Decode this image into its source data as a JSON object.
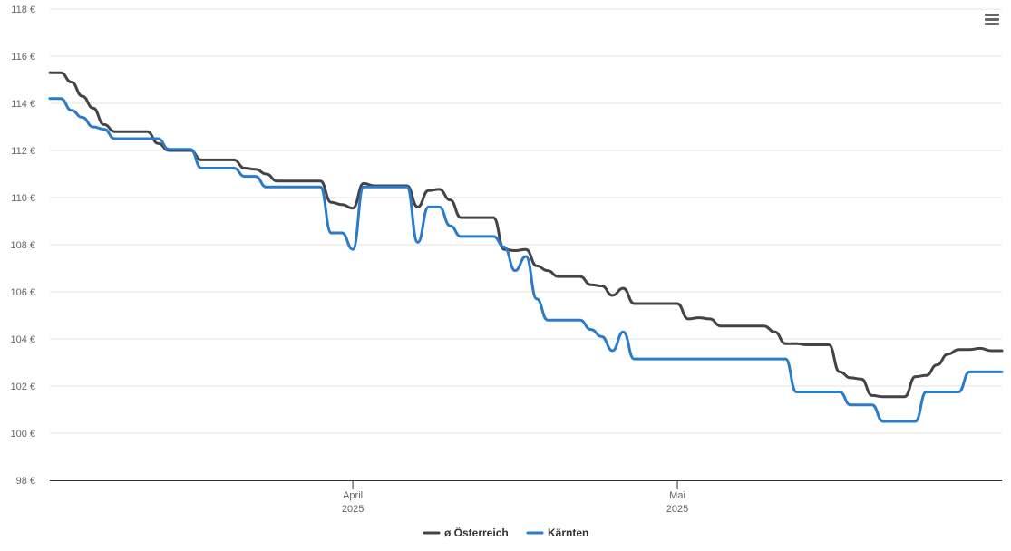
{
  "chart_data": {
    "type": "line",
    "title": "",
    "xlabel": "",
    "ylabel": "",
    "x_range": [
      "2025-03-04",
      "2025-05-31"
    ],
    "ylim": [
      98,
      118
    ],
    "y_ticks": [
      98,
      100,
      102,
      104,
      106,
      108,
      110,
      112,
      114,
      116,
      118
    ],
    "y_tick_labels": [
      "98 €",
      "100 €",
      "102 €",
      "104 €",
      "106 €",
      "108 €",
      "110 €",
      "112 €",
      "114 €",
      "116 €",
      "118 €"
    ],
    "x_ticks": [
      {
        "date": "2025-04-01",
        "month": "April",
        "year": "2025"
      },
      {
        "date": "2025-05-01",
        "month": "Mai",
        "year": "2025"
      }
    ],
    "grid": "horizontal",
    "legend_position": "bottom-center",
    "series": [
      {
        "name": "ø Österreich",
        "color": "#434348",
        "points": [
          [
            "2025-03-04",
            115.3
          ],
          [
            "2025-03-05",
            115.3
          ],
          [
            "2025-03-06",
            114.9
          ],
          [
            "2025-03-07",
            114.3
          ],
          [
            "2025-03-08",
            113.8
          ],
          [
            "2025-03-09",
            113.1
          ],
          [
            "2025-03-10",
            112.8
          ],
          [
            "2025-03-13",
            112.8
          ],
          [
            "2025-03-14",
            112.3
          ],
          [
            "2025-03-15",
            112.0
          ],
          [
            "2025-03-17",
            112.0
          ],
          [
            "2025-03-18",
            111.6
          ],
          [
            "2025-03-21",
            111.6
          ],
          [
            "2025-03-22",
            111.25
          ],
          [
            "2025-03-23",
            111.2
          ],
          [
            "2025-03-24",
            111.0
          ],
          [
            "2025-03-25",
            110.7
          ],
          [
            "2025-03-29",
            110.7
          ],
          [
            "2025-03-30",
            109.8
          ],
          [
            "2025-03-31",
            109.7
          ],
          [
            "2025-04-01",
            109.55
          ],
          [
            "2025-04-02",
            110.6
          ],
          [
            "2025-04-03",
            110.5
          ],
          [
            "2025-04-05",
            110.5
          ],
          [
            "2025-04-06",
            110.5
          ],
          [
            "2025-04-07",
            109.6
          ],
          [
            "2025-04-08",
            110.3
          ],
          [
            "2025-04-09",
            110.35
          ],
          [
            "2025-04-10",
            109.9
          ],
          [
            "2025-04-11",
            109.15
          ],
          [
            "2025-04-14",
            109.15
          ],
          [
            "2025-04-15",
            107.8
          ],
          [
            "2025-04-16",
            107.75
          ],
          [
            "2025-04-17",
            107.8
          ],
          [
            "2025-04-18",
            107.1
          ],
          [
            "2025-04-19",
            106.9
          ],
          [
            "2025-04-20",
            106.65
          ],
          [
            "2025-04-22",
            106.65
          ],
          [
            "2025-04-23",
            106.3
          ],
          [
            "2025-04-24",
            106.25
          ],
          [
            "2025-04-25",
            105.85
          ],
          [
            "2025-04-26",
            106.15
          ],
          [
            "2025-04-27",
            105.5
          ],
          [
            "2025-05-01",
            105.5
          ],
          [
            "2025-05-02",
            104.85
          ],
          [
            "2025-05-03",
            104.9
          ],
          [
            "2025-05-04",
            104.85
          ],
          [
            "2025-05-05",
            104.55
          ],
          [
            "2025-05-09",
            104.55
          ],
          [
            "2025-05-10",
            104.3
          ],
          [
            "2025-05-11",
            103.8
          ],
          [
            "2025-05-12",
            103.8
          ],
          [
            "2025-05-13",
            103.75
          ],
          [
            "2025-05-15",
            103.75
          ],
          [
            "2025-05-16",
            102.6
          ],
          [
            "2025-05-17",
            102.35
          ],
          [
            "2025-05-18",
            102.3
          ],
          [
            "2025-05-19",
            101.6
          ],
          [
            "2025-05-20",
            101.55
          ],
          [
            "2025-05-22",
            101.55
          ],
          [
            "2025-05-23",
            102.4
          ],
          [
            "2025-05-24",
            102.45
          ],
          [
            "2025-05-25",
            102.9
          ],
          [
            "2025-05-26",
            103.35
          ],
          [
            "2025-05-27",
            103.55
          ],
          [
            "2025-05-28",
            103.55
          ],
          [
            "2025-05-29",
            103.6
          ],
          [
            "2025-05-30",
            103.5
          ],
          [
            "2025-05-31",
            103.5
          ]
        ]
      },
      {
        "name": "Kärnten",
        "color": "#2b7bc8",
        "points": [
          [
            "2025-03-04",
            114.2
          ],
          [
            "2025-03-05",
            114.2
          ],
          [
            "2025-03-06",
            113.7
          ],
          [
            "2025-03-07",
            113.4
          ],
          [
            "2025-03-08",
            113.0
          ],
          [
            "2025-03-09",
            112.9
          ],
          [
            "2025-03-10",
            112.5
          ],
          [
            "2025-03-14",
            112.5
          ],
          [
            "2025-03-15",
            112.05
          ],
          [
            "2025-03-17",
            112.05
          ],
          [
            "2025-03-18",
            111.25
          ],
          [
            "2025-03-21",
            111.25
          ],
          [
            "2025-03-22",
            110.9
          ],
          [
            "2025-03-23",
            110.9
          ],
          [
            "2025-03-24",
            110.45
          ],
          [
            "2025-03-29",
            110.45
          ],
          [
            "2025-03-30",
            108.5
          ],
          [
            "2025-03-31",
            108.5
          ],
          [
            "2025-04-01",
            107.8
          ],
          [
            "2025-04-02",
            110.45
          ],
          [
            "2025-04-06",
            110.45
          ],
          [
            "2025-04-07",
            108.1
          ],
          [
            "2025-04-08",
            109.6
          ],
          [
            "2025-04-09",
            109.6
          ],
          [
            "2025-04-10",
            108.8
          ],
          [
            "2025-04-11",
            108.35
          ],
          [
            "2025-04-14",
            108.35
          ],
          [
            "2025-04-15",
            107.9
          ],
          [
            "2025-04-16",
            106.9
          ],
          [
            "2025-04-17",
            107.5
          ],
          [
            "2025-04-18",
            105.7
          ],
          [
            "2025-04-19",
            104.8
          ],
          [
            "2025-04-22",
            104.8
          ],
          [
            "2025-04-23",
            104.4
          ],
          [
            "2025-04-24",
            104.1
          ],
          [
            "2025-04-25",
            103.5
          ],
          [
            "2025-04-26",
            104.3
          ],
          [
            "2025-04-27",
            103.15
          ],
          [
            "2025-05-11",
            103.15
          ],
          [
            "2025-05-12",
            101.75
          ],
          [
            "2025-05-16",
            101.75
          ],
          [
            "2025-05-17",
            101.2
          ],
          [
            "2025-05-19",
            101.2
          ],
          [
            "2025-05-20",
            100.5
          ],
          [
            "2025-05-23",
            100.5
          ],
          [
            "2025-05-24",
            101.75
          ],
          [
            "2025-05-27",
            101.75
          ],
          [
            "2025-05-28",
            102.6
          ],
          [
            "2025-05-31",
            102.6
          ]
        ]
      }
    ]
  },
  "toolbar": {
    "menu_icon": "hamburger-menu-icon"
  }
}
